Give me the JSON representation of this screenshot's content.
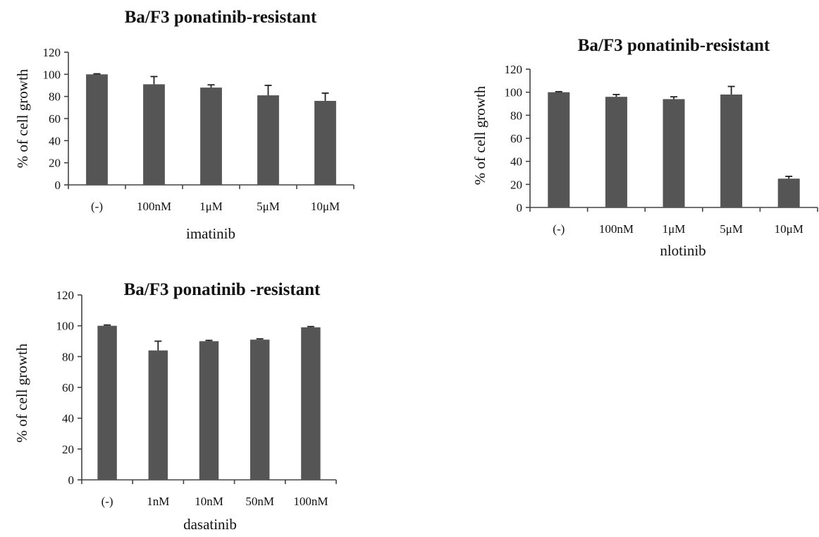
{
  "chart_data": [
    {
      "type": "bar",
      "title": "Ba/F3 ponatinib-resistant",
      "xlabel": "imatinib",
      "ylabel": "% of cell growth",
      "ylim": [
        0,
        120
      ],
      "yticks": [
        "0",
        "20",
        "40",
        "60",
        "80",
        "100",
        "120"
      ],
      "categories": [
        "(-)",
        "100nM",
        "1μM",
        "5μM",
        "10μM"
      ],
      "values": [
        100,
        91,
        88,
        81,
        76
      ],
      "errors": [
        0.5,
        7,
        2.5,
        9,
        7
      ],
      "grid": false,
      "bar_color": "#555555"
    },
    {
      "type": "bar",
      "title": "Ba/F3 ponatinib-resistant",
      "xlabel": "nlotinib",
      "ylabel": "% of cell growth",
      "ylim": [
        0,
        120
      ],
      "yticks": [
        "0",
        "20",
        "40",
        "60",
        "80",
        "100",
        "120"
      ],
      "categories": [
        "(-)",
        "100nM",
        "1μM",
        "5μM",
        "10μM"
      ],
      "values": [
        100,
        96,
        94,
        98,
        25
      ],
      "errors": [
        0.5,
        2,
        2,
        7,
        2
      ],
      "grid": false,
      "bar_color": "#555555"
    },
    {
      "type": "bar",
      "title": "Ba/F3 ponatinib -resistant",
      "xlabel": "dasatinib",
      "ylabel": "% of cell growth",
      "ylim": [
        0,
        120
      ],
      "yticks": [
        "0",
        "20",
        "40",
        "60",
        "80",
        "100",
        "120"
      ],
      "categories": [
        "(-)",
        "1nM",
        "10nM",
        "50nM",
        "100nM"
      ],
      "values": [
        100,
        84,
        90,
        91,
        99
      ],
      "errors": [
        0.5,
        6,
        0.5,
        0.5,
        0.5
      ],
      "grid": false,
      "bar_color": "#555555"
    }
  ]
}
